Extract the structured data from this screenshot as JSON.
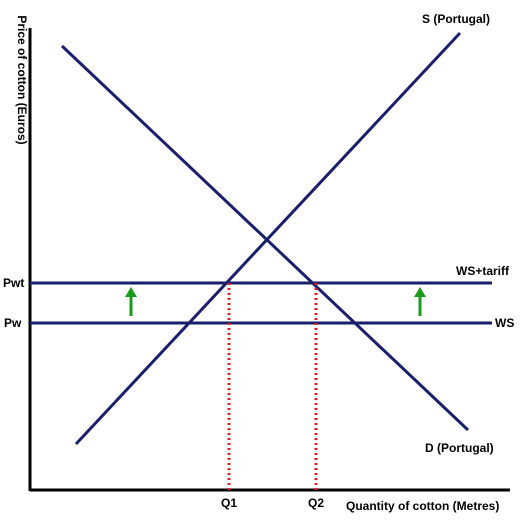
{
  "axes": {
    "y_label": "Price of cotton (Euros)",
    "x_label": "Quantity of cotton (Metres)"
  },
  "curves": {
    "supply_label": "S (Portugal)",
    "demand_label": "D (Portugal)"
  },
  "price_lines": {
    "world_supply_label": "WS",
    "world_supply_tariff_label": "WS+tariff"
  },
  "price_ticks": {
    "pw": "Pw",
    "pwt": "Pwt"
  },
  "quantity_ticks": {
    "q1": "Q1",
    "q2": "Q2"
  },
  "colors": {
    "curve": "#1a1f6b",
    "axis": "#000000",
    "dotted_guides": "#e02020",
    "arrows": "#1a9a1a"
  },
  "annotations": {
    "tariff_arrow_direction": "up",
    "tariff_arrow_count": 2
  }
}
